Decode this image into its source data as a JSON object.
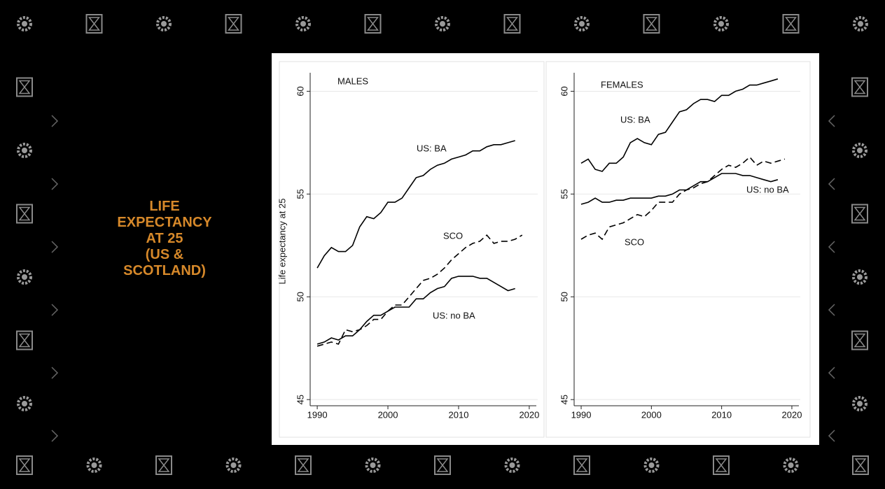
{
  "slide": {
    "title_lines": [
      "LIFE",
      "EXPECTANCY",
      "AT 25",
      "(US &",
      "SCOTLAND)"
    ]
  },
  "chart_data": [
    {
      "type": "line",
      "label": "MALES",
      "ylabel": "Life expectancy at 25",
      "x": [
        1990,
        1991,
        1992,
        1993,
        1994,
        1995,
        1996,
        1997,
        1998,
        1999,
        2000,
        2001,
        2002,
        2003,
        2004,
        2005,
        2006,
        2007,
        2008,
        2009,
        2010,
        2011,
        2012,
        2013,
        2014,
        2015,
        2016,
        2017,
        2018,
        2019
      ],
      "series": [
        {
          "name": "US: BA",
          "color": "#000000",
          "style": "solid",
          "values": [
            51.4,
            52.0,
            52.4,
            52.2,
            52.2,
            52.5,
            53.4,
            53.9,
            53.8,
            54.1,
            54.6,
            54.6,
            54.8,
            55.3,
            55.8,
            55.9,
            56.2,
            56.4,
            56.5,
            56.7,
            56.8,
            56.9,
            57.1,
            57.1,
            57.3,
            57.4,
            57.4,
            57.5,
            57.6,
            null
          ]
        },
        {
          "name": "SCO",
          "color": "#000000",
          "style": "dashed",
          "values": [
            47.6,
            47.7,
            47.8,
            47.7,
            48.4,
            48.3,
            48.4,
            48.6,
            48.9,
            48.9,
            49.3,
            49.6,
            49.6,
            50.0,
            50.4,
            50.8,
            50.9,
            51.1,
            51.4,
            51.8,
            52.1,
            52.4,
            52.6,
            52.7,
            53.0,
            52.6,
            52.7,
            52.7,
            52.8,
            53.0
          ]
        },
        {
          "name": "US:  no BA",
          "color": "#000000",
          "style": "solid",
          "values": [
            47.7,
            47.8,
            48.0,
            47.9,
            48.1,
            48.1,
            48.4,
            48.8,
            49.1,
            49.1,
            49.3,
            49.5,
            49.5,
            49.5,
            49.9,
            49.9,
            50.2,
            50.4,
            50.5,
            50.9,
            51.0,
            51.0,
            51.0,
            50.9,
            50.9,
            50.7,
            50.5,
            50.3,
            50.4,
            null
          ]
        }
      ],
      "xlim": [
        1989,
        2021
      ],
      "xticks": [
        1990,
        2000,
        2010,
        2020
      ],
      "ylim": [
        44.7,
        60.9
      ],
      "yticks": [
        45,
        50,
        55,
        60
      ],
      "grid": true
    },
    {
      "type": "line",
      "label": "FEMALES",
      "x": [
        1990,
        1991,
        1992,
        1993,
        1994,
        1995,
        1996,
        1997,
        1998,
        1999,
        2000,
        2001,
        2002,
        2003,
        2004,
        2005,
        2006,
        2007,
        2008,
        2009,
        2010,
        2011,
        2012,
        2013,
        2014,
        2015,
        2016,
        2017,
        2018,
        2019
      ],
      "series": [
        {
          "name": "US: BA",
          "color": "#000000",
          "style": "solid",
          "values": [
            56.5,
            56.7,
            56.2,
            56.1,
            56.5,
            56.5,
            56.8,
            57.5,
            57.7,
            57.5,
            57.4,
            57.9,
            58.0,
            58.5,
            59.0,
            59.1,
            59.4,
            59.6,
            59.6,
            59.5,
            59.8,
            59.8,
            60.0,
            60.1,
            60.3,
            60.3,
            60.4,
            60.5,
            60.6,
            null
          ]
        },
        {
          "name": "US: no BA",
          "color": "#000000",
          "style": "solid",
          "values": [
            54.5,
            54.6,
            54.8,
            54.6,
            54.6,
            54.7,
            54.7,
            54.8,
            54.8,
            54.8,
            54.8,
            54.9,
            54.9,
            55.0,
            55.2,
            55.2,
            55.4,
            55.6,
            55.6,
            55.8,
            56.0,
            56.0,
            56.0,
            55.9,
            55.9,
            55.8,
            55.7,
            55.6,
            55.7,
            null
          ]
        },
        {
          "name": "SCO",
          "color": "#000000",
          "style": "dashed",
          "values": [
            52.8,
            53.0,
            53.1,
            52.8,
            53.4,
            53.5,
            53.6,
            53.8,
            54.0,
            53.9,
            54.2,
            54.6,
            54.6,
            54.6,
            55.0,
            55.2,
            55.3,
            55.5,
            55.6,
            55.9,
            56.2,
            56.4,
            56.3,
            56.5,
            56.8,
            56.4,
            56.6,
            56.5,
            56.6,
            56.7
          ]
        }
      ],
      "xlim": [
        1989,
        2021
      ],
      "xticks": [
        1990,
        2000,
        2010,
        2020
      ],
      "ylim": [
        44.7,
        60.9
      ],
      "yticks": [
        45,
        50,
        55,
        60
      ],
      "grid": true
    }
  ]
}
